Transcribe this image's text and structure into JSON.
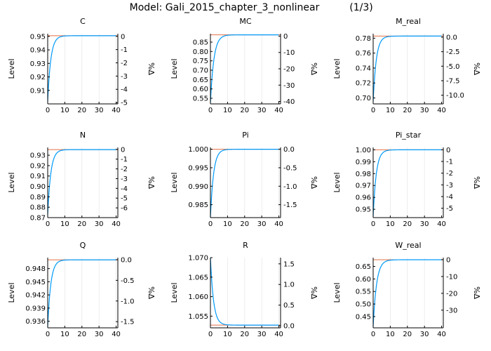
{
  "figure": {
    "title": "Model: Gali_2015_chapter_3_nonlinear",
    "page": "(1/3)"
  },
  "colors": {
    "line": "#009AFA",
    "steady": "#E26F46",
    "grid": "#e8e8e8",
    "axis": "#000000"
  },
  "chart_data": [
    {
      "type": "line",
      "title": "C",
      "ylabel": "Level",
      "y2label": "%Δ",
      "xlim": [
        0,
        41
      ],
      "ylim": [
        0.9,
        0.952
      ],
      "y2lim": [
        -5.1,
        0.2
      ],
      "xticks": [
        0,
        10,
        20,
        30,
        40
      ],
      "yticks": [
        0.91,
        0.92,
        0.93,
        0.94,
        0.95
      ],
      "y2ticks": [
        -5,
        -4,
        -3,
        -2,
        -1,
        0
      ],
      "steady_state": 0.9505,
      "start": 0.902,
      "decay": 0.55
    },
    {
      "type": "line",
      "title": "MC",
      "ylabel": "Level",
      "y2label": "%Δ",
      "xlim": [
        0,
        41
      ],
      "ylim": [
        0.52,
        0.895
      ],
      "y2lim": [
        -41.5,
        1.5
      ],
      "xticks": [
        0,
        10,
        20,
        30,
        40
      ],
      "yticks": [
        0.55,
        0.6,
        0.65,
        0.7,
        0.75,
        0.8,
        0.85
      ],
      "y2ticks": [
        -40,
        -30,
        -20,
        -10,
        0
      ],
      "steady_state": 0.8889,
      "start": 0.525,
      "decay": 0.5
    },
    {
      "type": "line",
      "title": "M_real",
      "ylabel": "Level",
      "y2label": "%Δ",
      "xlim": [
        0,
        41
      ],
      "ylim": [
        0.692,
        0.786
      ],
      "y2lim": [
        -11.5,
        0.6
      ],
      "xticks": [
        0,
        10,
        20,
        30,
        40
      ],
      "yticks": [
        0.7,
        0.72,
        0.74,
        0.76,
        0.78
      ],
      "y2ticks": [
        -10.0,
        -7.5,
        -5.0,
        -2.5,
        0.0
      ],
      "steady_state": 0.7828,
      "start": 0.695,
      "decay": 0.55
    },
    {
      "type": "line",
      "title": "N",
      "ylabel": "Level",
      "y2label": "%Δ",
      "xlim": [
        0,
        41
      ],
      "ylim": [
        0.87,
        0.9375
      ],
      "y2lim": [
        -7.0,
        0.2
      ],
      "xticks": [
        0,
        10,
        20,
        30,
        40
      ],
      "yticks": [
        0.87,
        0.88,
        0.89,
        0.9,
        0.91,
        0.92,
        0.93
      ],
      "y2ticks": [
        -6,
        -5,
        -4,
        -3,
        -2,
        -1,
        0
      ],
      "steady_state": 0.9354,
      "start": 0.873,
      "decay": 0.55
    },
    {
      "type": "line",
      "title": "Pi",
      "ylabel": "Level",
      "y2label": "%Δ",
      "xlim": [
        0,
        41
      ],
      "ylim": [
        0.9815,
        1.0005
      ],
      "y2lim": [
        -1.85,
        0.05
      ],
      "xticks": [
        0,
        10,
        20,
        30,
        40
      ],
      "yticks": [
        0.985,
        0.99,
        0.995,
        1.0
      ],
      "y2ticks": [
        -1.5,
        -1.0,
        -0.5,
        0.0
      ],
      "steady_state": 1.0,
      "start": 0.9815,
      "decay": 0.55
    },
    {
      "type": "line",
      "title": "Pi_star",
      "ylabel": "Level",
      "y2label": "%Δ",
      "xlim": [
        0,
        41
      ],
      "ylim": [
        0.943,
        1.002
      ],
      "y2lim": [
        -5.8,
        0.2
      ],
      "xticks": [
        0,
        10,
        20,
        30,
        40
      ],
      "yticks": [
        0.95,
        0.96,
        0.97,
        0.98,
        0.99,
        1.0
      ],
      "y2ticks": [
        -5,
        -4,
        -3,
        -2,
        -1,
        0
      ],
      "steady_state": 1.0,
      "start": 0.944,
      "decay": 0.55
    },
    {
      "type": "line",
      "title": "Q",
      "ylabel": "Level",
      "y2label": "%Δ",
      "xlim": [
        0,
        41
      ],
      "ylim": [
        0.9345,
        0.9505
      ],
      "y2lim": [
        -1.65,
        0.05
      ],
      "xticks": [
        0,
        10,
        20,
        30,
        40
      ],
      "yticks": [
        0.936,
        0.939,
        0.942,
        0.945,
        0.948
      ],
      "y2ticks": [
        -1.5,
        -1.0,
        -0.5,
        0.0
      ],
      "steady_state": 0.95,
      "start": 0.9348,
      "decay": 0.55
    },
    {
      "type": "line",
      "title": "R",
      "ylabel": "Level",
      "y2label": "%Δ",
      "xlim": [
        0,
        41
      ],
      "ylim": [
        1.052,
        1.07
      ],
      "y2lim": [
        -0.05,
        1.65
      ],
      "xticks": [
        0,
        10,
        20,
        30,
        40
      ],
      "yticks": [
        1.055,
        1.06,
        1.065,
        1.07
      ],
      "y2ticks": [
        0.0,
        0.5,
        1.0,
        1.5
      ],
      "steady_state": 1.0527,
      "start": 1.07,
      "decay": 0.55
    },
    {
      "type": "line",
      "title": "W_real",
      "ylabel": "Level",
      "y2label": "%Δ",
      "xlim": [
        0,
        41
      ],
      "ylim": [
        0.405,
        0.685
      ],
      "y2lim": [
        -40.5,
        1.2
      ],
      "xticks": [
        0,
        10,
        20,
        30,
        40
      ],
      "yticks": [
        0.45,
        0.5,
        0.55,
        0.6,
        0.65
      ],
      "y2ticks": [
        -30,
        -20,
        -10,
        0
      ],
      "steady_state": 0.6766,
      "start": 0.41,
      "decay": 0.5
    }
  ]
}
